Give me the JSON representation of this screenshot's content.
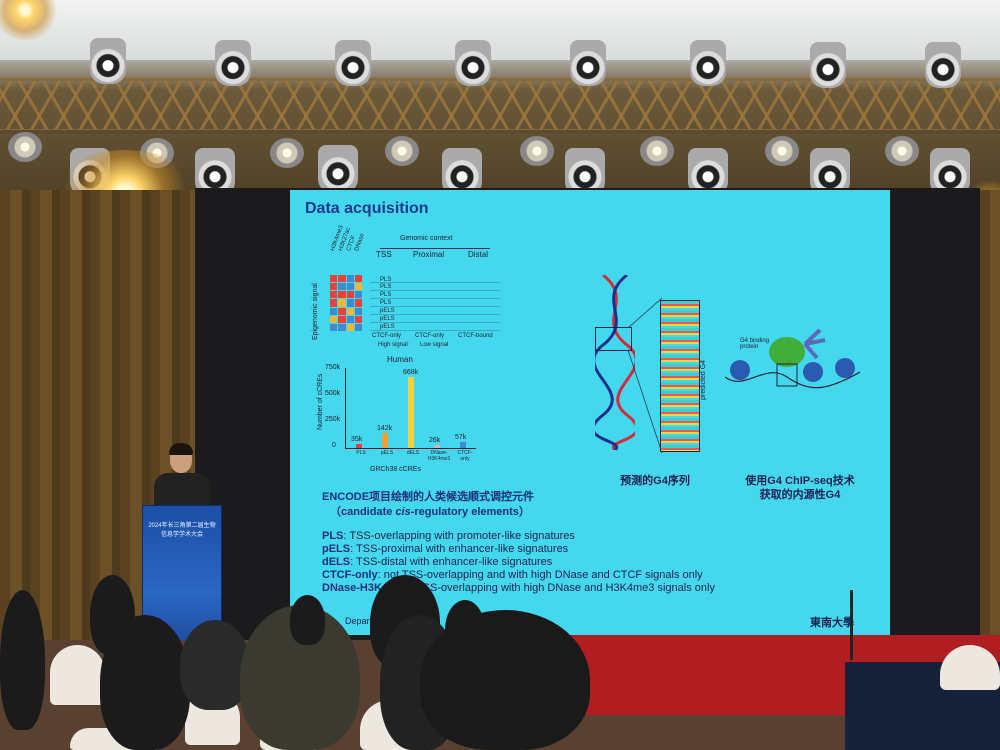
{
  "slide": {
    "title": "Data acquisition",
    "genomic_context": "Genomic context",
    "contexts": [
      "TSS",
      "Proximal",
      "Distal"
    ],
    "ylabel_signal": "Epigenomic signal",
    "heat_labels": [
      "H3K4me3",
      "H3K27ac",
      "CTCF",
      "DNase"
    ],
    "legend_high": "High signal",
    "legend_low": "Low signal",
    "row_labels": [
      "PLS",
      "PLS",
      "PLS",
      "PLS",
      "pELS",
      "pELS",
      "pELS"
    ],
    "ctcf_only": "CTCF-only",
    "ctcf_bound": "CTCF-bound",
    "chart_title": "Human",
    "chart_ylabel": "Number of cCREs",
    "chart_xlabel": "GRCh38 cCREs",
    "chart_ticks": [
      "750k",
      "500k",
      "250k",
      "0"
    ],
    "encode_line1": "ENCODE项目绘制的人类候选顺式调控元件",
    "encode_line2_pre": "（candidate ",
    "encode_line2_cis": "cis",
    "encode_line2_post": "-regulatory elements）",
    "definitions": [
      {
        "term": "PLS",
        "text": ": TSS-overlapping with promoter-like signatures"
      },
      {
        "term": "pELS",
        "text": ": TSS-proximal with enhancer-like signatures"
      },
      {
        "term": "dELS",
        "text": ": TSS-distal with enhancer-like signatures"
      },
      {
        "term": "CTCF-only",
        "text": ": not TSS-overlapping and with high DNase and CTCF signals only"
      },
      {
        "term": "DNase-H3K4me3",
        "text": ": TSS-overlapping with high DNase and H3K4me3 signals only"
      }
    ],
    "predicted_label": "predicted G4",
    "caption_left": "预测的G4序列",
    "g4_protein": "G4 binding protein",
    "caption_right_1": "使用G4 ChIP-seq技术",
    "caption_right_2": "获取的内源性G4",
    "footer_left": "Department",
    "footer_right": "東南大學"
  },
  "chart_data": {
    "type": "bar",
    "title": "Human",
    "xlabel": "GRCh38 cCREs",
    "ylabel": "Number of cCREs",
    "categories": [
      "PLS",
      "pELS",
      "dELS",
      "DNase-H3K4me3",
      "CTCF-only"
    ],
    "values": [
      35,
      142,
      668,
      26,
      57
    ],
    "value_labels": [
      "35k",
      "142k",
      "668k",
      "26k",
      "57k"
    ],
    "ylim": [
      0,
      750
    ],
    "colors": [
      "#e8413a",
      "#f0a038",
      "#f5d040",
      "#f0a8b8",
      "#3c8cd0"
    ]
  },
  "podium": {
    "title": "2024年长三角第二届生物信息学学术大会"
  },
  "colors": {
    "slide_bg": "#44d8ee",
    "title": "#1b3a8a",
    "stage": "#b01e22"
  }
}
